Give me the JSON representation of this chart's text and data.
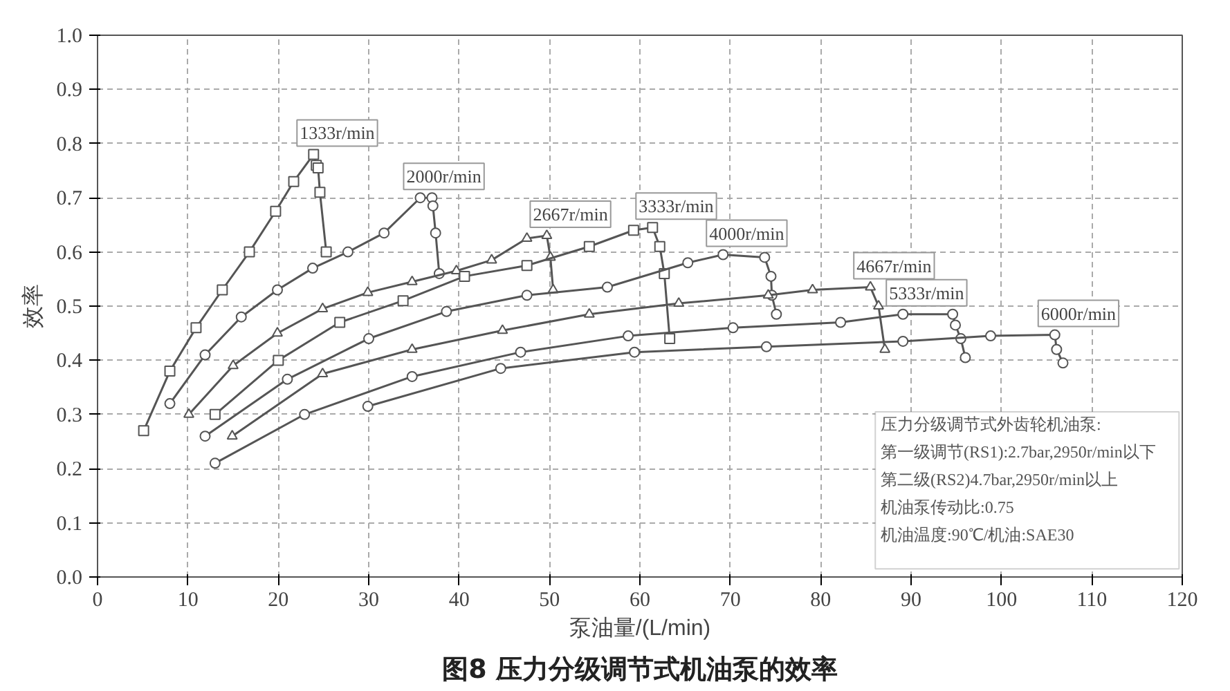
{
  "chart_data": {
    "type": "line",
    "title": "图8 压力分级调节式机油泵的效率",
    "xlabel": "泵油量/(L/min)",
    "ylabel": "效率",
    "xlim": [
      0,
      120
    ],
    "ylim": [
      0,
      1
    ],
    "xticks": [
      0,
      10,
      20,
      30,
      40,
      50,
      60,
      70,
      80,
      90,
      100,
      110,
      120
    ],
    "yticks": [
      {
        "value": 0,
        "label": "0.0"
      },
      0.1,
      0.2,
      0.3,
      0.4,
      0.5,
      0.6,
      0.7,
      0.8,
      0.9,
      {
        "value": 1,
        "label": "1.0"
      }
    ],
    "grid": true,
    "line_style": "solid",
    "series": [
      {
        "name": "1333r/min",
        "color": "#555555",
        "marker": "square",
        "x": [
          5.1,
          8.0,
          10.9,
          13.8,
          16.8,
          19.7,
          21.7,
          23.9,
          24.2,
          24.4,
          24.6,
          25.3
        ],
        "values": [
          0.27,
          0.38,
          0.46,
          0.53,
          0.6,
          0.675,
          0.73,
          0.78,
          0.76,
          0.755,
          0.71,
          0.6
        ]
      },
      {
        "name": "2000r/min",
        "color": "#555555",
        "marker": "circle",
        "x": [
          8.0,
          11.9,
          15.9,
          19.9,
          23.8,
          27.7,
          31.7,
          35.7,
          37.0,
          37.1,
          37.4,
          37.8
        ],
        "values": [
          0.32,
          0.41,
          0.48,
          0.53,
          0.57,
          0.6,
          0.635,
          0.7,
          0.7,
          0.685,
          0.635,
          0.56
        ]
      },
      {
        "name": "2667r/min",
        "color": "#555555",
        "marker": "triangle",
        "x": [
          10.1,
          15.0,
          19.9,
          24.9,
          29.9,
          34.8,
          39.7,
          43.6,
          47.5,
          49.7,
          50.1,
          50.4
        ],
        "values": [
          0.3,
          0.39,
          0.45,
          0.495,
          0.525,
          0.545,
          0.565,
          0.585,
          0.625,
          0.63,
          0.59,
          0.53
        ]
      },
      {
        "name": "3333r/min",
        "color": "#555555",
        "marker": "square",
        "x": [
          13.0,
          20.0,
          26.8,
          33.8,
          40.6,
          47.5,
          54.4,
          59.3,
          61.4,
          62.2,
          62.7,
          63.3
        ],
        "values": [
          0.3,
          0.4,
          0.47,
          0.51,
          0.555,
          0.575,
          0.61,
          0.64,
          0.645,
          0.61,
          0.56,
          0.44
        ]
      },
      {
        "name": "4000r/min",
        "color": "#555555",
        "marker": "circle",
        "x": [
          11.9,
          21.0,
          30.0,
          38.6,
          47.5,
          56.4,
          65.3,
          69.2,
          73.8,
          74.5,
          74.6,
          75.1
        ],
        "values": [
          0.26,
          0.365,
          0.44,
          0.49,
          0.52,
          0.535,
          0.58,
          0.595,
          0.59,
          0.555,
          0.52,
          0.485
        ]
      },
      {
        "name": "4667r/min",
        "color": "#555555",
        "marker": "triangle",
        "x": [
          14.9,
          24.9,
          34.8,
          44.8,
          54.4,
          64.3,
          74.2,
          79.1,
          85.5,
          86.4,
          87.1
        ],
        "values": [
          0.26,
          0.375,
          0.42,
          0.455,
          0.485,
          0.505,
          0.52,
          0.53,
          0.535,
          0.5,
          0.42
        ]
      },
      {
        "name": "5333r/min",
        "color": "#555555",
        "marker": "circle",
        "x": [
          13.0,
          22.9,
          34.8,
          46.8,
          58.7,
          70.3,
          82.2,
          89.1,
          94.6,
          94.9,
          95.5,
          96.0
        ],
        "values": [
          0.21,
          0.3,
          0.37,
          0.415,
          0.445,
          0.46,
          0.47,
          0.485,
          0.485,
          0.465,
          0.44,
          0.405
        ]
      },
      {
        "name": "6000r/min",
        "color": "#555555",
        "marker": "circle",
        "x": [
          29.9,
          44.6,
          59.4,
          74.0,
          89.1,
          98.8,
          105.9,
          106.1,
          106.8
        ],
        "values": [
          0.315,
          0.385,
          0.415,
          0.425,
          0.435,
          0.445,
          0.447,
          0.42,
          0.395
        ]
      }
    ],
    "annotations": [
      "压力分级调节式外齿轮机油泵:",
      "第一级调节(RS1):2.7bar,2950r/min以下",
      "第二级(RS2)4.7bar,2950r/min以上",
      "机油泵传动比:0.75",
      "机油温度:90℃/机油:SAE30"
    ]
  }
}
